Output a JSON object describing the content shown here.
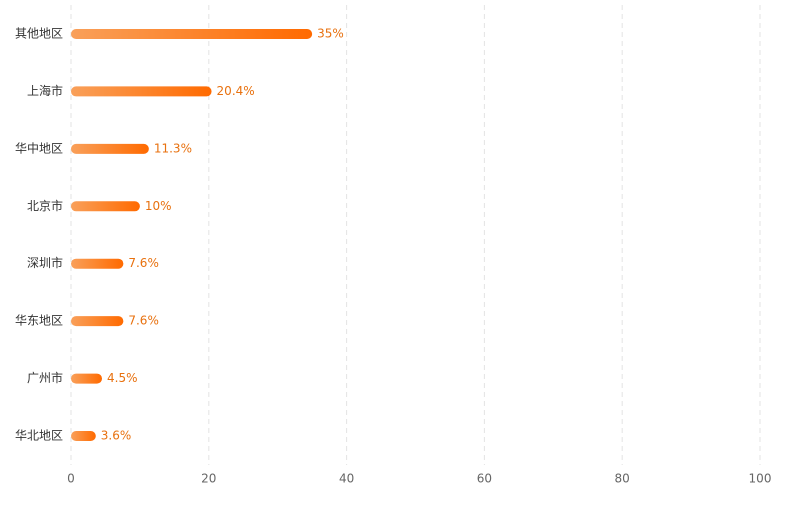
{
  "chart_data": {
    "type": "bar",
    "orientation": "horizontal",
    "categories": [
      "其他地区",
      "上海市",
      "华中地区",
      "北京市",
      "深圳市",
      "华东地区",
      "广州市",
      "华北地区"
    ],
    "values": [
      35,
      20.4,
      11.3,
      10,
      7.6,
      7.6,
      4.5,
      3.6
    ],
    "value_labels": [
      "35%",
      "20.4%",
      "11.3%",
      "10%",
      "7.6%",
      "7.6%",
      "4.5%",
      "3.6%"
    ],
    "color": [
      "#f9a05a",
      "#ff6a00"
    ],
    "xlim": [
      0,
      100
    ],
    "xticks": [
      0,
      20,
      40,
      60,
      80,
      100
    ],
    "grid": true
  }
}
